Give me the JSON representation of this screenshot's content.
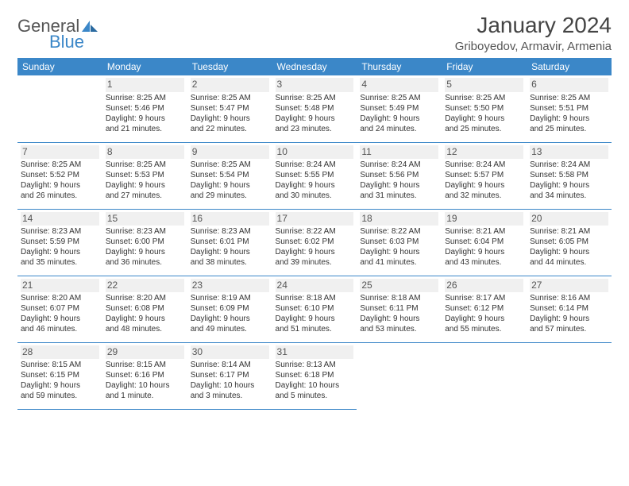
{
  "logo": {
    "part1": "General",
    "part2": "Blue"
  },
  "title": "January 2024",
  "location": "Griboyedov, Armavir, Armenia",
  "colors": {
    "header_bg": "#3b87c8",
    "header_text": "#ffffff",
    "border": "#3b87c8",
    "daynum_bg": "#f0f0f0"
  },
  "weekdays": [
    "Sunday",
    "Monday",
    "Tuesday",
    "Wednesday",
    "Thursday",
    "Friday",
    "Saturday"
  ],
  "weeks": [
    [
      null,
      {
        "n": "1",
        "sr": "Sunrise: 8:25 AM",
        "ss": "Sunset: 5:46 PM",
        "d1": "Daylight: 9 hours",
        "d2": "and 21 minutes."
      },
      {
        "n": "2",
        "sr": "Sunrise: 8:25 AM",
        "ss": "Sunset: 5:47 PM",
        "d1": "Daylight: 9 hours",
        "d2": "and 22 minutes."
      },
      {
        "n": "3",
        "sr": "Sunrise: 8:25 AM",
        "ss": "Sunset: 5:48 PM",
        "d1": "Daylight: 9 hours",
        "d2": "and 23 minutes."
      },
      {
        "n": "4",
        "sr": "Sunrise: 8:25 AM",
        "ss": "Sunset: 5:49 PM",
        "d1": "Daylight: 9 hours",
        "d2": "and 24 minutes."
      },
      {
        "n": "5",
        "sr": "Sunrise: 8:25 AM",
        "ss": "Sunset: 5:50 PM",
        "d1": "Daylight: 9 hours",
        "d2": "and 25 minutes."
      },
      {
        "n": "6",
        "sr": "Sunrise: 8:25 AM",
        "ss": "Sunset: 5:51 PM",
        "d1": "Daylight: 9 hours",
        "d2": "and 25 minutes."
      }
    ],
    [
      {
        "n": "7",
        "sr": "Sunrise: 8:25 AM",
        "ss": "Sunset: 5:52 PM",
        "d1": "Daylight: 9 hours",
        "d2": "and 26 minutes."
      },
      {
        "n": "8",
        "sr": "Sunrise: 8:25 AM",
        "ss": "Sunset: 5:53 PM",
        "d1": "Daylight: 9 hours",
        "d2": "and 27 minutes."
      },
      {
        "n": "9",
        "sr": "Sunrise: 8:25 AM",
        "ss": "Sunset: 5:54 PM",
        "d1": "Daylight: 9 hours",
        "d2": "and 29 minutes."
      },
      {
        "n": "10",
        "sr": "Sunrise: 8:24 AM",
        "ss": "Sunset: 5:55 PM",
        "d1": "Daylight: 9 hours",
        "d2": "and 30 minutes."
      },
      {
        "n": "11",
        "sr": "Sunrise: 8:24 AM",
        "ss": "Sunset: 5:56 PM",
        "d1": "Daylight: 9 hours",
        "d2": "and 31 minutes."
      },
      {
        "n": "12",
        "sr": "Sunrise: 8:24 AM",
        "ss": "Sunset: 5:57 PM",
        "d1": "Daylight: 9 hours",
        "d2": "and 32 minutes."
      },
      {
        "n": "13",
        "sr": "Sunrise: 8:24 AM",
        "ss": "Sunset: 5:58 PM",
        "d1": "Daylight: 9 hours",
        "d2": "and 34 minutes."
      }
    ],
    [
      {
        "n": "14",
        "sr": "Sunrise: 8:23 AM",
        "ss": "Sunset: 5:59 PM",
        "d1": "Daylight: 9 hours",
        "d2": "and 35 minutes."
      },
      {
        "n": "15",
        "sr": "Sunrise: 8:23 AM",
        "ss": "Sunset: 6:00 PM",
        "d1": "Daylight: 9 hours",
        "d2": "and 36 minutes."
      },
      {
        "n": "16",
        "sr": "Sunrise: 8:23 AM",
        "ss": "Sunset: 6:01 PM",
        "d1": "Daylight: 9 hours",
        "d2": "and 38 minutes."
      },
      {
        "n": "17",
        "sr": "Sunrise: 8:22 AM",
        "ss": "Sunset: 6:02 PM",
        "d1": "Daylight: 9 hours",
        "d2": "and 39 minutes."
      },
      {
        "n": "18",
        "sr": "Sunrise: 8:22 AM",
        "ss": "Sunset: 6:03 PM",
        "d1": "Daylight: 9 hours",
        "d2": "and 41 minutes."
      },
      {
        "n": "19",
        "sr": "Sunrise: 8:21 AM",
        "ss": "Sunset: 6:04 PM",
        "d1": "Daylight: 9 hours",
        "d2": "and 43 minutes."
      },
      {
        "n": "20",
        "sr": "Sunrise: 8:21 AM",
        "ss": "Sunset: 6:05 PM",
        "d1": "Daylight: 9 hours",
        "d2": "and 44 minutes."
      }
    ],
    [
      {
        "n": "21",
        "sr": "Sunrise: 8:20 AM",
        "ss": "Sunset: 6:07 PM",
        "d1": "Daylight: 9 hours",
        "d2": "and 46 minutes."
      },
      {
        "n": "22",
        "sr": "Sunrise: 8:20 AM",
        "ss": "Sunset: 6:08 PM",
        "d1": "Daylight: 9 hours",
        "d2": "and 48 minutes."
      },
      {
        "n": "23",
        "sr": "Sunrise: 8:19 AM",
        "ss": "Sunset: 6:09 PM",
        "d1": "Daylight: 9 hours",
        "d2": "and 49 minutes."
      },
      {
        "n": "24",
        "sr": "Sunrise: 8:18 AM",
        "ss": "Sunset: 6:10 PM",
        "d1": "Daylight: 9 hours",
        "d2": "and 51 minutes."
      },
      {
        "n": "25",
        "sr": "Sunrise: 8:18 AM",
        "ss": "Sunset: 6:11 PM",
        "d1": "Daylight: 9 hours",
        "d2": "and 53 minutes."
      },
      {
        "n": "26",
        "sr": "Sunrise: 8:17 AM",
        "ss": "Sunset: 6:12 PM",
        "d1": "Daylight: 9 hours",
        "d2": "and 55 minutes."
      },
      {
        "n": "27",
        "sr": "Sunrise: 8:16 AM",
        "ss": "Sunset: 6:14 PM",
        "d1": "Daylight: 9 hours",
        "d2": "and 57 minutes."
      }
    ],
    [
      {
        "n": "28",
        "sr": "Sunrise: 8:15 AM",
        "ss": "Sunset: 6:15 PM",
        "d1": "Daylight: 9 hours",
        "d2": "and 59 minutes."
      },
      {
        "n": "29",
        "sr": "Sunrise: 8:15 AM",
        "ss": "Sunset: 6:16 PM",
        "d1": "Daylight: 10 hours",
        "d2": "and 1 minute."
      },
      {
        "n": "30",
        "sr": "Sunrise: 8:14 AM",
        "ss": "Sunset: 6:17 PM",
        "d1": "Daylight: 10 hours",
        "d2": "and 3 minutes."
      },
      {
        "n": "31",
        "sr": "Sunrise: 8:13 AM",
        "ss": "Sunset: 6:18 PM",
        "d1": "Daylight: 10 hours",
        "d2": "and 5 minutes."
      },
      null,
      null,
      null
    ]
  ]
}
